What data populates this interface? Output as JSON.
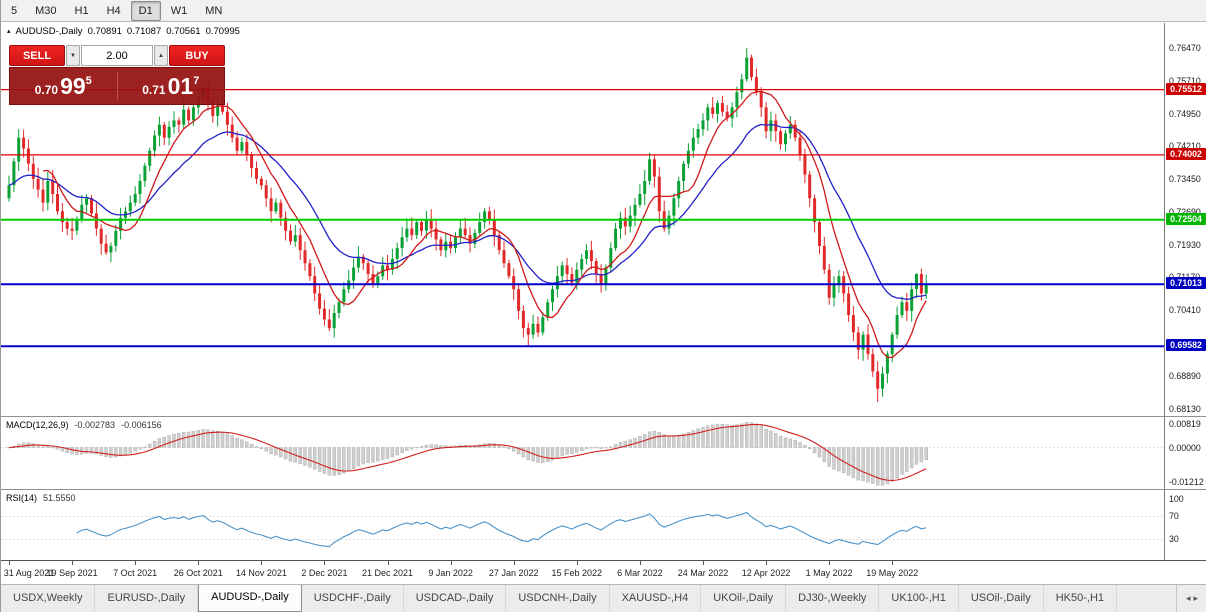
{
  "toolbar": {
    "timeframes": [
      {
        "label": "5",
        "active": false
      },
      {
        "label": "M30",
        "active": false
      },
      {
        "label": "H1",
        "active": false
      },
      {
        "label": "H4",
        "active": false
      },
      {
        "label": "D1",
        "active": true
      },
      {
        "label": "W1",
        "active": false
      },
      {
        "label": "MN",
        "active": false
      }
    ]
  },
  "header": {
    "symbol": "AUDUSD-,Daily",
    "open": "0.70891",
    "high": "0.71087",
    "low": "0.70561",
    "close": "0.70995"
  },
  "trade_panel": {
    "sell_label": "SELL",
    "buy_label": "BUY",
    "volume": "2.00",
    "sell_price": {
      "prefix": "0.70",
      "big": "99",
      "sup": "5"
    },
    "buy_price": {
      "prefix": "0.71",
      "big": "01",
      "sup": "7"
    }
  },
  "icons": {
    "chart_window": "▴",
    "volume_down": "▼",
    "volume_up": "▲",
    "tab_scroll_left": "◂",
    "tab_scroll_right": "▸"
  },
  "price_axis": {
    "ticks": [
      "0.76470",
      "0.75710",
      "0.74950",
      "0.74210",
      "0.73450",
      "0.72690",
      "0.71930",
      "0.71170",
      "0.70410",
      "0.69650",
      "0.68890",
      "0.68130"
    ]
  },
  "levels": [
    {
      "price": 0.75512,
      "label": "0.75512",
      "color": "#cc0000",
      "line": "#e00000",
      "width": 1.2
    },
    {
      "price": 0.74002,
      "label": "0.74002",
      "color": "#cc0000",
      "line": "#e00000",
      "width": 1.2
    },
    {
      "price": 0.72504,
      "label": "0.72504",
      "color": "#00b400",
      "line": "#00cc00",
      "width": 2
    },
    {
      "price": 0.71013,
      "label": "0.71013",
      "color": "#0000c0",
      "line": "#0000d2",
      "width": 2
    },
    {
      "price": 0.69582,
      "label": "0.69582",
      "color": "#0000c0",
      "line": "#0000d2",
      "width": 2
    }
  ],
  "macd_panel": {
    "name": "MACD(12,26,9)",
    "value1": "-0.002783",
    "value2": "-0.006156",
    "axis": [
      "0.00819",
      "0.00000",
      "-0.01212"
    ]
  },
  "rsi_panel": {
    "name": "RSI(14)",
    "value": "51.5550",
    "axis": [
      "100",
      "70",
      "30"
    ]
  },
  "tabs": [
    {
      "label": "USDX,Weekly",
      "active": false
    },
    {
      "label": "EURUSD-,Daily",
      "active": false
    },
    {
      "label": "AUDUSD-,Daily",
      "active": true
    },
    {
      "label": "USDCHF-,Daily",
      "active": false
    },
    {
      "label": "USDCAD-,Daily",
      "active": false
    },
    {
      "label": "USDCNH-,Daily",
      "active": false
    },
    {
      "label": "XAUUSD-,H4",
      "active": false
    },
    {
      "label": "UKOil-,Daily",
      "active": false
    },
    {
      "label": "DJ30-,Weekly",
      "active": false
    },
    {
      "label": "UK100-,H1",
      "active": false
    },
    {
      "label": "USOil-,Daily",
      "active": false
    },
    {
      "label": "HK50-,H1",
      "active": false
    }
  ],
  "colors": {
    "up": "#09a134",
    "down": "#e22929",
    "ma_fast": "#d01818",
    "ma_slow": "#2020c8",
    "macd_hist": "#cfcfcf",
    "macd_hist_border": "#a8a8a8",
    "macd_signal": "#d02020",
    "rsi": "#4a94cc"
  },
  "chart_data": {
    "type": "candlestick",
    "symbol": "AUDUSD-",
    "timeframe": "Daily",
    "current": {
      "open": 0.70891,
      "high": 0.71087,
      "low": 0.70561,
      "close": 0.70995
    },
    "y_axis": {
      "top_label": 0.7647,
      "bottom_label": 0.6813,
      "tick_step": 0.0076
    },
    "horizontal_levels": [
      0.75512,
      0.74002,
      0.72504,
      0.71013,
      0.69582
    ],
    "x_labels": [
      "31 Aug 2021",
      "19 Sep 2021",
      "7 Oct 2021",
      "26 Oct 2021",
      "14 Nov 2021",
      "2 Dec 2021",
      "21 Dec 2021",
      "9 Jan 2022",
      "27 Jan 2022",
      "15 Feb 2022",
      "6 Mar 2022",
      "24 Mar 2022",
      "12 Apr 2022",
      "1 May 2022",
      "19 May 2022"
    ],
    "x_label_step": 13,
    "first_open": 0.73,
    "closes": [
      0.733,
      0.7385,
      0.744,
      0.7415,
      0.738,
      0.7345,
      0.732,
      0.729,
      0.734,
      0.731,
      0.727,
      0.7245,
      0.723,
      0.7225,
      0.725,
      0.7285,
      0.73,
      0.7265,
      0.723,
      0.7195,
      0.7175,
      0.719,
      0.7225,
      0.7255,
      0.727,
      0.729,
      0.731,
      0.734,
      0.7375,
      0.741,
      0.7445,
      0.747,
      0.744,
      0.7465,
      0.748,
      0.747,
      0.7505,
      0.748,
      0.751,
      0.7535,
      0.7555,
      0.752,
      0.749,
      0.7515,
      0.75,
      0.747,
      0.744,
      0.741,
      0.743,
      0.74,
      0.737,
      0.7345,
      0.733,
      0.73,
      0.727,
      0.729,
      0.7255,
      0.7225,
      0.72,
      0.7215,
      0.718,
      0.715,
      0.712,
      0.708,
      0.7045,
      0.702,
      0.7,
      0.7035,
      0.706,
      0.709,
      0.711,
      0.714,
      0.7165,
      0.715,
      0.7125,
      0.71,
      0.712,
      0.7145,
      0.7135,
      0.716,
      0.7185,
      0.721,
      0.723,
      0.7215,
      0.7245,
      0.7225,
      0.725,
      0.723,
      0.7205,
      0.718,
      0.72,
      0.7185,
      0.721,
      0.723,
      0.7215,
      0.7195,
      0.722,
      0.7245,
      0.727,
      0.725,
      0.7215,
      0.718,
      0.715,
      0.712,
      0.709,
      0.704,
      0.7,
      0.6985,
      0.701,
      0.699,
      0.7025,
      0.706,
      0.709,
      0.712,
      0.7145,
      0.7125,
      0.7105,
      0.7135,
      0.716,
      0.718,
      0.7155,
      0.7125,
      0.71,
      0.714,
      0.7185,
      0.723,
      0.7255,
      0.7235,
      0.726,
      0.7285,
      0.731,
      0.734,
      0.739,
      0.735,
      0.727,
      0.723,
      0.726,
      0.73,
      0.734,
      0.738,
      0.741,
      0.744,
      0.746,
      0.748,
      0.751,
      0.7495,
      0.752,
      0.75,
      0.7485,
      0.751,
      0.7545,
      0.7575,
      0.7625,
      0.758,
      0.7545,
      0.751,
      0.7455,
      0.748,
      0.7455,
      0.7425,
      0.745,
      0.747,
      0.744,
      0.74,
      0.7355,
      0.73,
      0.7245,
      0.719,
      0.7135,
      0.707,
      0.71,
      0.712,
      0.708,
      0.703,
      0.699,
      0.695,
      0.6985,
      0.694,
      0.69,
      0.686,
      0.6895,
      0.694,
      0.6985,
      0.703,
      0.706,
      0.704,
      0.709,
      0.7125,
      0.708,
      0.70995
    ],
    "wick_overrides": {
      "2": {
        "high": 0.746
      },
      "20": {
        "low": 0.7169
      },
      "40": {
        "high": 0.756
      },
      "66": {
        "low": 0.6993
      },
      "98": {
        "high": 0.7277
      },
      "107": {
        "low": 0.6958
      },
      "152": {
        "high": 0.7647
      },
      "179": {
        "low": 0.6829
      },
      "187": {
        "high": 0.7127
      }
    },
    "indicators": {
      "ma_fast_period": 8,
      "ma_slow_period": 21,
      "macd": {
        "fast": 12,
        "slow": 26,
        "signal": 9,
        "value": -0.002783,
        "signal_value": -0.006156
      },
      "rsi": {
        "period": 14,
        "value": 51.555
      }
    }
  }
}
